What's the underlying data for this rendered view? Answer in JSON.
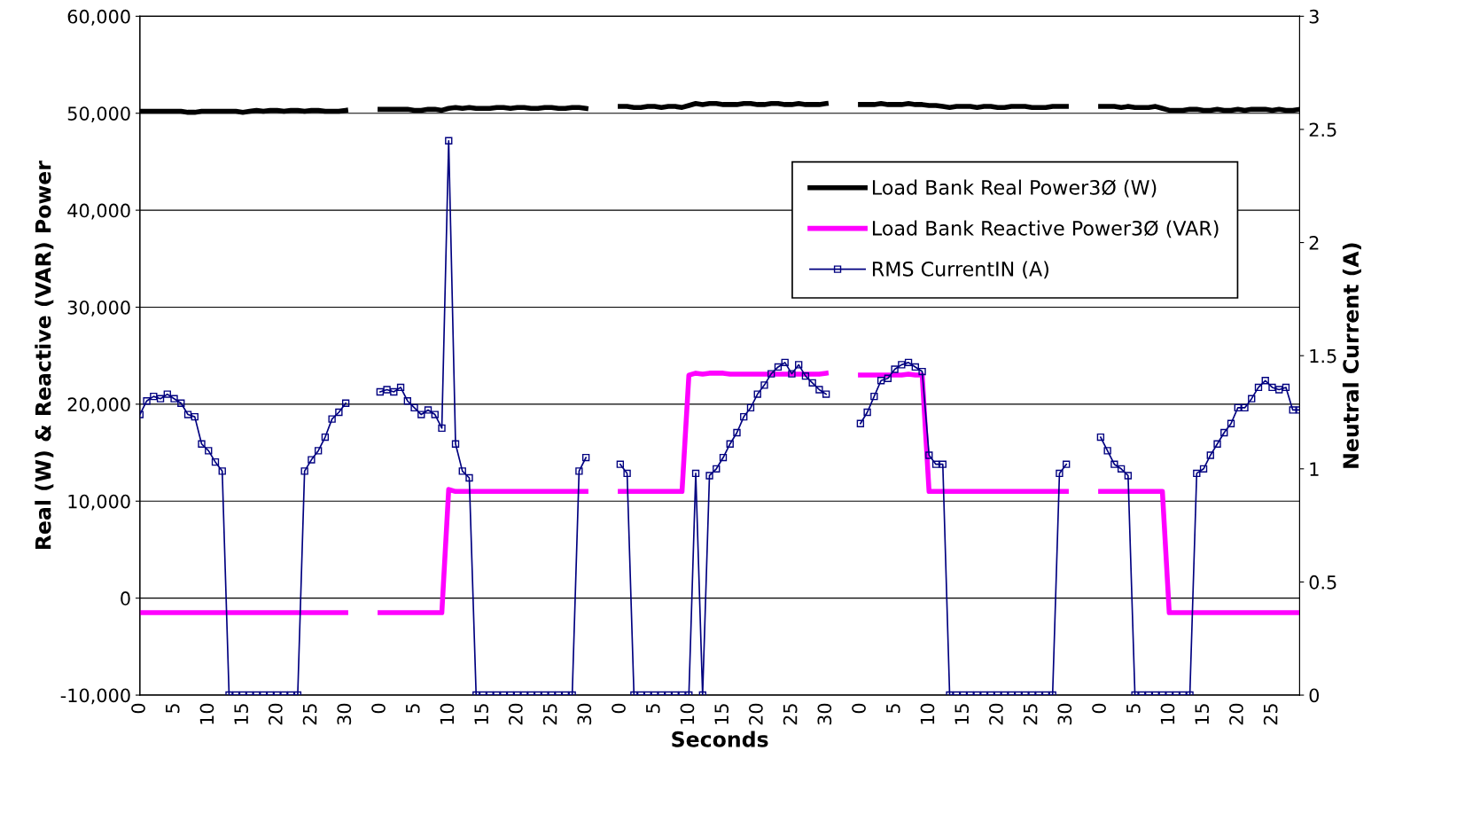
{
  "chart_data": {
    "type": "line",
    "xlabel": "Seconds",
    "ylabel": "Real (W) & Reactive (VAR) Power",
    "y2label": "Neutral Current (A)",
    "categories": [
      "0",
      null,
      null,
      null,
      null,
      "5",
      null,
      null,
      null,
      null,
      "10",
      null,
      null,
      null,
      null,
      "15",
      null,
      null,
      null,
      null,
      "20",
      null,
      null,
      null,
      null,
      "25",
      null,
      null,
      null,
      null,
      "30",
      null,
      null,
      null,
      null,
      "0",
      null,
      null,
      null,
      null,
      "5",
      null,
      null,
      null,
      null,
      "10",
      null,
      null,
      null,
      null,
      "15",
      null,
      null,
      null,
      null,
      "20",
      null,
      null,
      null,
      null,
      "25",
      null,
      null,
      null,
      null,
      "30",
      null,
      null,
      null,
      null,
      "0",
      null,
      null,
      null,
      null,
      "5",
      null,
      null,
      null,
      null,
      "10",
      null,
      null,
      null,
      null,
      "15",
      null,
      null,
      null,
      null,
      "20",
      null,
      null,
      null,
      null,
      "25",
      null,
      null,
      null,
      null,
      "30",
      null,
      null,
      null,
      null,
      "0",
      null,
      null,
      null,
      null,
      "5",
      null,
      null,
      null,
      null,
      "10",
      null,
      null,
      null,
      null,
      "15",
      null,
      null,
      null,
      null,
      "20",
      null,
      null,
      null,
      null,
      "25",
      null,
      null,
      null,
      null,
      "30",
      null,
      null,
      null,
      null,
      "0",
      null,
      null,
      null,
      null,
      "5",
      null,
      null,
      null,
      null,
      "10",
      null,
      null,
      null,
      null,
      "15",
      null,
      null,
      null,
      null,
      "20",
      null,
      null,
      null,
      null,
      "25",
      null,
      null,
      null,
      null
    ],
    "series": [
      {
        "name": "Load Bank Real Power3Ø (W)",
        "color": "#000000",
        "line_style": "solid",
        "marker": "none",
        "values": [
          50200,
          50200,
          50200,
          50200,
          50200,
          50200,
          50200,
          50100,
          50100,
          50200,
          50200,
          50200,
          50200,
          50200,
          50200,
          50100,
          50200,
          50300,
          50200,
          50300,
          50300,
          50200,
          50300,
          50300,
          50200,
          50300,
          50300,
          50200,
          50200,
          50200,
          50300,
          null,
          null,
          null,
          null,
          50400,
          50400,
          50400,
          50400,
          50400,
          50300,
          50300,
          50400,
          50400,
          50300,
          50500,
          50600,
          50500,
          50600,
          50500,
          50500,
          50500,
          50600,
          50600,
          50500,
          50600,
          50600,
          50500,
          50500,
          50600,
          50600,
          50500,
          50500,
          50600,
          50600,
          50500,
          null,
          null,
          null,
          null,
          50700,
          50700,
          50600,
          50600,
          50700,
          50700,
          50600,
          50700,
          50700,
          50600,
          50800,
          51000,
          50900,
          51000,
          51000,
          50900,
          50900,
          50900,
          51000,
          51000,
          50900,
          50900,
          51000,
          51000,
          50900,
          50900,
          51000,
          50900,
          50900,
          50900,
          51000,
          null,
          null,
          null,
          null,
          50900,
          50900,
          50900,
          51000,
          50900,
          50900,
          50900,
          51000,
          50900,
          50900,
          50800,
          50800,
          50700,
          50600,
          50700,
          50700,
          50700,
          50600,
          50700,
          50700,
          50600,
          50600,
          50700,
          50700,
          50700,
          50600,
          50600,
          50600,
          50700,
          50700,
          50700,
          null,
          null,
          null,
          null,
          50700,
          50700,
          50700,
          50600,
          50700,
          50600,
          50600,
          50600,
          50700,
          50500,
          50300,
          50300,
          50300,
          50400,
          50400,
          50300,
          50300,
          50400,
          50300,
          50300,
          50400,
          50300,
          50400,
          50400,
          50400,
          50300,
          50400,
          50300,
          50300,
          50400
        ]
      },
      {
        "name": "Load Bank Reactive Power3Ø (VAR)",
        "color": "#ff00ff",
        "line_style": "solid",
        "marker": "none",
        "values": [
          -1500,
          -1500,
          -1500,
          -1500,
          -1500,
          -1500,
          -1500,
          -1500,
          -1500,
          -1500,
          -1500,
          -1500,
          -1500,
          -1500,
          -1500,
          -1500,
          -1500,
          -1500,
          -1500,
          -1500,
          -1500,
          -1500,
          -1500,
          -1500,
          -1500,
          -1500,
          -1500,
          -1500,
          -1500,
          -1500,
          -1500,
          null,
          null,
          null,
          null,
          -1500,
          -1500,
          -1500,
          -1500,
          -1500,
          -1500,
          -1500,
          -1500,
          -1500,
          -1500,
          11200,
          11000,
          11000,
          11000,
          11000,
          11000,
          11000,
          11000,
          11000,
          11000,
          11000,
          11000,
          11000,
          11000,
          11000,
          11000,
          11000,
          11000,
          11000,
          11000,
          11000,
          null,
          null,
          null,
          null,
          11000,
          11000,
          11000,
          11000,
          11000,
          11000,
          11000,
          11000,
          11000,
          11000,
          23000,
          23200,
          23100,
          23200,
          23200,
          23200,
          23100,
          23100,
          23100,
          23100,
          23100,
          23100,
          23100,
          23100,
          23100,
          23100,
          23100,
          23100,
          23100,
          23100,
          23200,
          null,
          null,
          null,
          null,
          23000,
          23000,
          23000,
          23000,
          23000,
          23000,
          23000,
          23100,
          23000,
          23000,
          11000,
          11000,
          11000,
          11000,
          11000,
          11000,
          11000,
          11000,
          11000,
          11000,
          11000,
          11000,
          11000,
          11000,
          11000,
          11000,
          11000,
          11000,
          11000,
          11000,
          11000,
          null,
          null,
          null,
          null,
          11000,
          11000,
          11000,
          11000,
          11000,
          11000,
          11000,
          11000,
          11000,
          11000,
          -1500,
          -1500,
          -1500,
          -1500,
          -1500,
          -1500,
          -1500,
          -1500,
          -1500,
          -1500,
          -1500,
          -1500,
          -1500,
          -1500,
          -1500,
          -1500,
          -1500,
          -1500,
          -1500,
          -1500
        ]
      },
      {
        "name": "RMS CurrentIN (A)",
        "color": "#000080",
        "axis": "y2",
        "line_style": "solid",
        "marker": "square",
        "values": [
          1.24,
          1.3,
          1.32,
          1.31,
          1.33,
          1.31,
          1.29,
          1.24,
          1.23,
          1.11,
          1.08,
          1.03,
          0.99,
          0,
          0,
          0,
          0,
          0,
          0,
          0,
          0,
          0,
          0,
          0,
          0.99,
          1.04,
          1.08,
          1.14,
          1.22,
          1.25,
          1.29,
          null,
          null,
          null,
          null,
          1.34,
          1.35,
          1.34,
          1.36,
          1.3,
          1.27,
          1.24,
          1.26,
          1.24,
          1.18,
          2.45,
          1.11,
          0.99,
          0.96,
          0,
          0,
          0,
          0,
          0,
          0,
          0,
          0,
          0,
          0,
          0,
          0,
          0,
          0,
          0,
          0.99,
          1.05,
          null,
          null,
          null,
          null,
          1.02,
          0.98,
          0,
          0,
          0,
          0,
          0,
          0,
          0,
          0,
          0,
          0.98,
          0,
          0.97,
          1.0,
          1.05,
          1.11,
          1.16,
          1.23,
          1.27,
          1.33,
          1.37,
          1.42,
          1.45,
          1.47,
          1.42,
          1.46,
          1.41,
          1.38,
          1.35,
          1.33,
          null,
          null,
          null,
          null,
          1.2,
          1.25,
          1.32,
          1.39,
          1.4,
          1.44,
          1.46,
          1.47,
          1.45,
          1.43,
          1.06,
          1.02,
          1.02,
          0,
          0,
          0,
          0,
          0,
          0,
          0,
          0,
          0,
          0,
          0,
          0,
          0,
          0,
          0,
          0,
          0.98,
          1.02,
          null,
          null,
          null,
          null,
          1.14,
          1.08,
          1.02,
          1.0,
          0.97,
          0,
          0,
          0,
          0,
          0,
          0,
          0,
          0,
          0,
          0.98,
          1.0,
          1.06,
          1.11,
          1.16,
          1.2,
          1.27,
          1.27,
          1.31,
          1.36,
          1.39,
          1.36,
          1.35,
          1.36,
          1.26,
          1.26
        ]
      }
    ],
    "ylim": [
      -10000,
      60000
    ],
    "yticks": [
      {
        "value": -10000,
        "label": "-10,000"
      },
      0,
      {
        "value": 10000,
        "label": "10,000"
      },
      {
        "value": 20000,
        "label": "20,000"
      },
      {
        "value": 30000,
        "label": "30,000"
      },
      {
        "value": 40000,
        "label": "40,000"
      },
      {
        "value": 50000,
        "label": "50,000"
      },
      {
        "value": 60000,
        "label": "60,000"
      }
    ],
    "y2lim": [
      0,
      3
    ],
    "y2ticks": [
      0,
      0.5,
      1,
      1.5,
      2,
      2.5,
      3
    ],
    "grid": "y",
    "legend": "top right"
  }
}
